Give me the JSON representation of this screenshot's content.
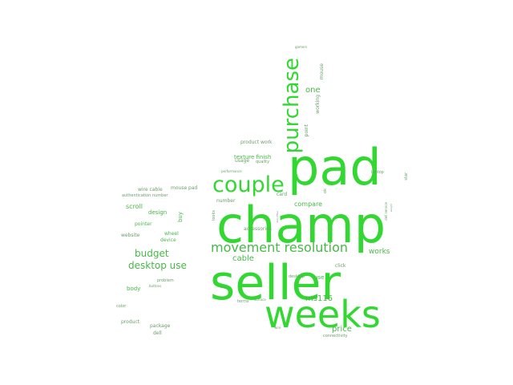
{
  "words": [
    "champ",
    "seller",
    "pad",
    "weeks",
    "couple",
    "purchase",
    "movement resolution",
    "desktop use",
    "budget",
    "one",
    "ms116",
    "cable",
    "price",
    "works",
    "compare",
    "scroll",
    "design",
    "buy",
    "wheel",
    "device",
    "pointer",
    "website",
    "body",
    "product",
    "package",
    "dell",
    "color",
    "problem",
    "buttons",
    "click",
    "desktop",
    "use",
    "terms",
    "surface",
    "mouse",
    "working",
    "point",
    "product work",
    "texture finish",
    "usage",
    "quality",
    "performance",
    "laptop",
    "star",
    "card",
    "mouse pad",
    "number",
    "ok",
    "accessories",
    "looks",
    "wire cable",
    "authentication number",
    "dell service",
    "weight",
    "connectivity",
    "wire",
    "gamers",
    "dell office",
    "base"
  ],
  "colors": {
    "bright": "#32d732",
    "mid": "#46b946",
    "dim": "#6a9f6a",
    "background": "#ffffff"
  }
}
